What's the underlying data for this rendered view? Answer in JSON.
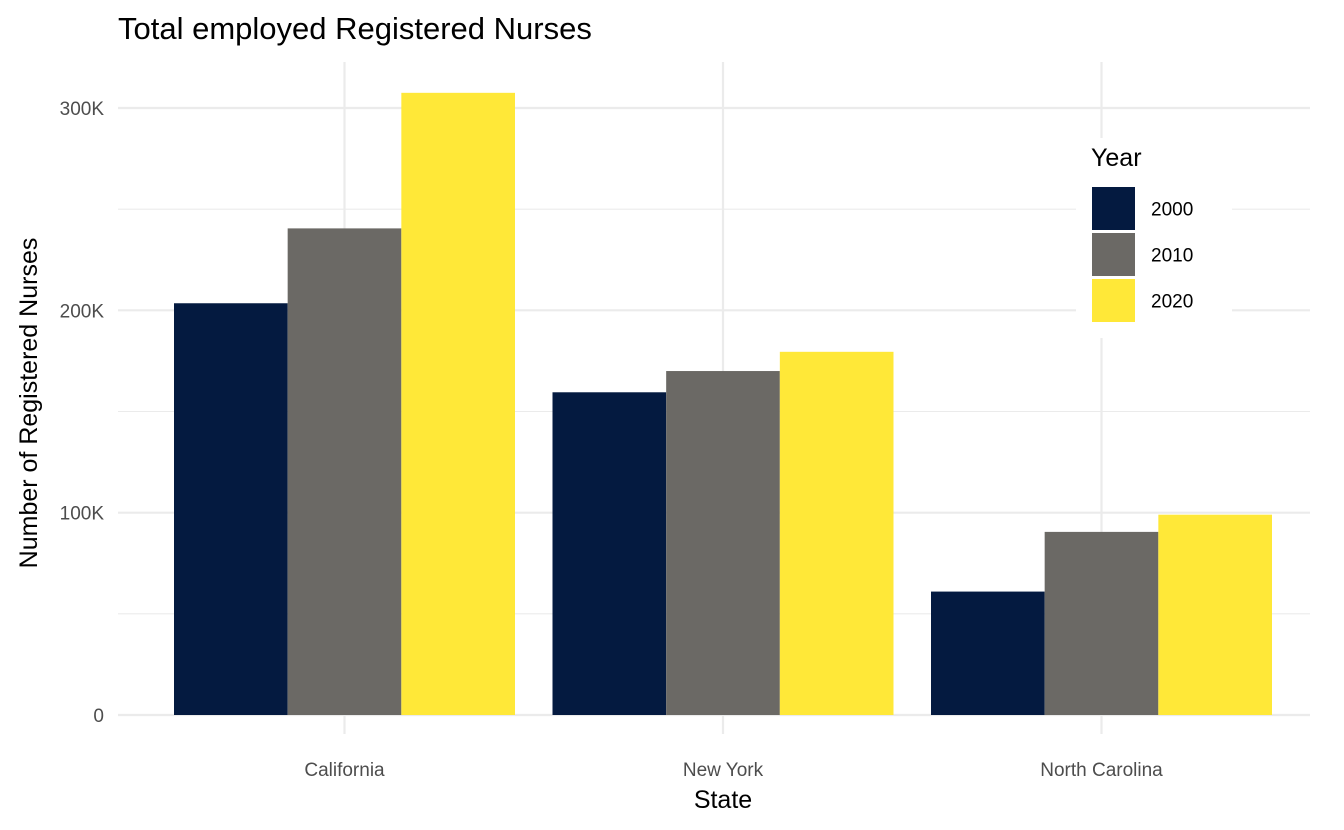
{
  "chart_data": {
    "type": "bar",
    "title": "Total employed Registered Nurses",
    "xlabel": "State",
    "ylabel": "Number of Registered Nurses",
    "categories": [
      "California",
      "New York",
      "North Carolina"
    ],
    "series": [
      {
        "name": "2000",
        "color": "#041a40",
        "values": [
          203500,
          159500,
          61000
        ]
      },
      {
        "name": "2010",
        "color": "#6b6965",
        "values": [
          240500,
          170000,
          90500
        ]
      },
      {
        "name": "2020",
        "color": "#ffe838",
        "values": [
          307500,
          179500,
          99000
        ]
      }
    ],
    "ylim": [
      0,
      320000
    ],
    "yticks": [
      0,
      100000,
      200000,
      300000
    ],
    "ytick_labels": [
      "0",
      "100K",
      "200K",
      "300K"
    ],
    "legend": {
      "title": "Year",
      "position": "inside-top-right"
    },
    "grid": true
  }
}
